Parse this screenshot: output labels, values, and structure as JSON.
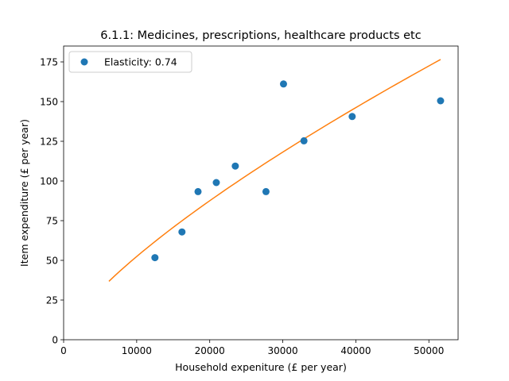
{
  "chart_data": {
    "type": "scatter",
    "title": "6.1.1: Medicines, prescriptions, healthcare products etc",
    "xlabel": "Household expeniture (£ per year)",
    "ylabel": "Item expenditure (£ per year)",
    "xlim": [
      0,
      54000
    ],
    "ylim": [
      0,
      185
    ],
    "xticks": [
      0,
      10000,
      20000,
      30000,
      40000,
      50000
    ],
    "yticks": [
      0,
      25,
      50,
      75,
      100,
      125,
      150,
      175
    ],
    "grid": false,
    "legend_position": "top-left",
    "legend_label": "Elasticity: 0.74",
    "elasticity": 0.74,
    "points": {
      "color": "#1f77b4",
      "x": [
        12500,
        16200,
        18400,
        20900,
        23500,
        27700,
        30100,
        32900,
        39500,
        51600
      ],
      "y": [
        51.7,
        67.9,
        93.3,
        99.0,
        109.4,
        93.3,
        161.1,
        125.3,
        140.6,
        150.5
      ]
    },
    "fit": {
      "color": "#ff7f0e",
      "x_start": 6200,
      "y_start": 36.8,
      "x_end": 51600,
      "y_end": 176.7
    }
  }
}
